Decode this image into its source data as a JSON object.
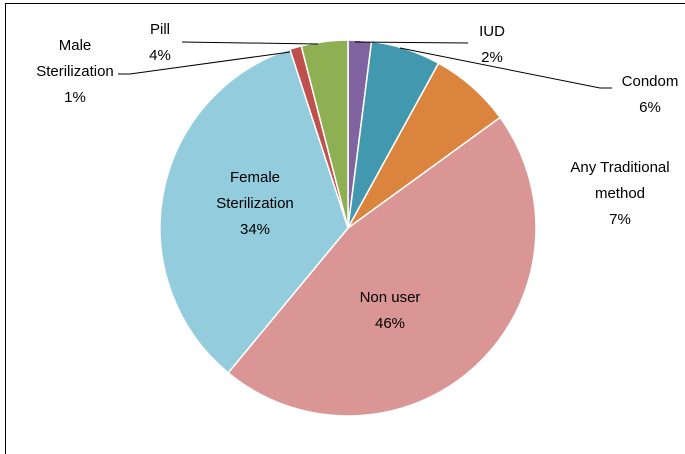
{
  "chart_data": {
    "type": "pie",
    "categories": [
      "IUD",
      "Condom",
      "Any Traditional method",
      "Non user",
      "Female Sterilization",
      "Male Sterilization",
      "Pill"
    ],
    "values": [
      2,
      6,
      7,
      46,
      34,
      1,
      4
    ],
    "value_labels": [
      "2%",
      "6%",
      "7%",
      "46%",
      "34%",
      "1%",
      "4%"
    ],
    "colors": [
      "#8064a2",
      "#4198af",
      "#db843d",
      "#d99694",
      "#93cddd",
      "#c0504d",
      "#8eb052"
    ]
  }
}
